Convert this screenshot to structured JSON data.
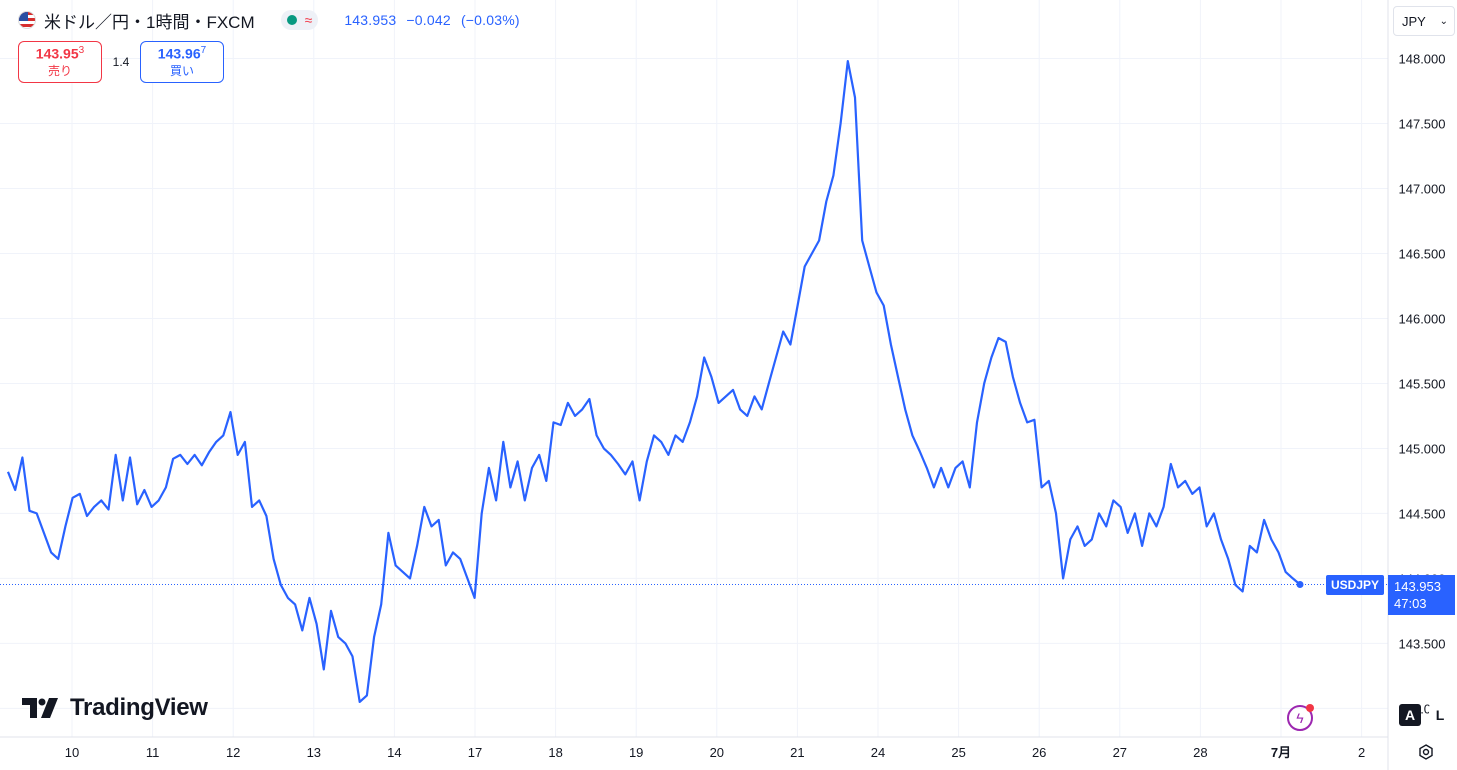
{
  "header": {
    "title": "米ドル／円・1時間・FXCM",
    "delay_icon": "≈",
    "price": "143.953",
    "change": "−0.042",
    "change_pct": "(−0.03%)"
  },
  "trade": {
    "sell_price_main": "143.95",
    "sell_price_sup": "3",
    "sell_label": "売り",
    "spread": "1.4",
    "buy_price_main": "143.96",
    "buy_price_sup": "7",
    "buy_label": "買い"
  },
  "currency": "JPY",
  "logo_text": "TradingView",
  "last_price": {
    "symbol": "USDJPY",
    "price": "143.953",
    "countdown": "47:03"
  },
  "scale_buttons": {
    "auto": "A",
    "log": "L"
  },
  "colors": {
    "line": "#2962ff",
    "sell": "#f23645",
    "buy": "#2962ff",
    "grid": "#f0f3fa",
    "bg": "#ffffff"
  },
  "chart_data": {
    "type": "line",
    "series": [
      {
        "values": [
          144.82,
          144.68,
          144.93,
          144.52,
          144.5,
          144.35,
          144.2,
          144.15,
          144.4,
          144.62,
          144.65,
          144.48,
          144.55,
          144.6,
          144.53,
          144.95,
          144.6,
          144.93,
          144.57,
          144.68,
          144.55,
          144.6,
          144.7,
          144.92,
          144.95,
          144.88,
          144.95,
          144.87,
          144.97,
          145.05,
          145.1,
          145.28,
          144.95,
          145.05,
          144.55,
          144.6,
          144.48,
          144.15,
          143.95,
          143.85,
          143.8,
          143.6,
          143.85,
          143.65,
          143.3,
          143.75,
          143.55,
          143.5,
          143.4,
          143.05,
          143.1,
          143.55,
          143.8,
          144.35,
          144.1,
          144.05,
          144.0,
          144.25,
          144.55,
          144.4,
          144.45,
          144.1,
          144.2,
          144.15,
          144.0,
          143.85,
          144.5,
          144.85,
          144.6,
          145.05,
          144.7,
          144.9,
          144.6,
          144.85,
          144.95,
          144.75,
          145.2,
          145.18,
          145.35,
          145.25,
          145.3,
          145.38,
          145.1,
          145.0,
          144.95,
          144.88,
          144.8,
          144.9,
          144.6,
          144.9,
          145.1,
          145.05,
          144.95,
          145.1,
          145.05,
          145.2,
          145.4,
          145.7,
          145.55,
          145.35,
          145.4,
          145.45,
          145.3,
          145.25,
          145.4,
          145.3,
          145.5,
          145.7,
          145.9,
          145.8,
          146.1,
          146.4,
          146.5,
          146.6,
          146.9,
          147.1,
          147.5,
          147.98,
          147.7,
          146.6,
          146.4,
          146.2,
          146.1,
          145.8,
          145.55,
          145.3,
          145.1,
          144.98,
          144.85,
          144.7,
          144.85,
          144.7,
          144.85,
          144.9,
          144.7,
          145.2,
          145.5,
          145.7,
          145.85,
          145.82,
          145.55,
          145.35,
          145.2,
          145.22,
          144.7,
          144.75,
          144.5,
          144.0,
          144.3,
          144.4,
          144.25,
          144.3,
          144.5,
          144.4,
          144.6,
          144.55,
          144.35,
          144.5,
          144.25,
          144.5,
          144.4,
          144.55,
          144.88,
          144.7,
          144.75,
          144.65,
          144.7,
          144.4,
          144.5,
          144.3,
          144.15,
          143.95,
          143.9,
          144.25,
          144.2,
          144.45,
          144.3,
          144.2,
          144.05,
          144.0,
          143.953
        ]
      }
    ],
    "x_ticks": [
      "10",
      "11",
      "12",
      "13",
      "14",
      "17",
      "18",
      "19",
      "20",
      "21",
      "24",
      "25",
      "26",
      "27",
      "28",
      "7月",
      "2"
    ],
    "y_ticks": [
      "143.000",
      "143.500",
      "144.000",
      "144.500",
      "145.000",
      "145.500",
      "146.000",
      "146.500",
      "147.000",
      "147.500",
      "148.000"
    ],
    "ylim": [
      142.78,
      148.45
    ],
    "last_value": 143.953,
    "grid": true
  }
}
